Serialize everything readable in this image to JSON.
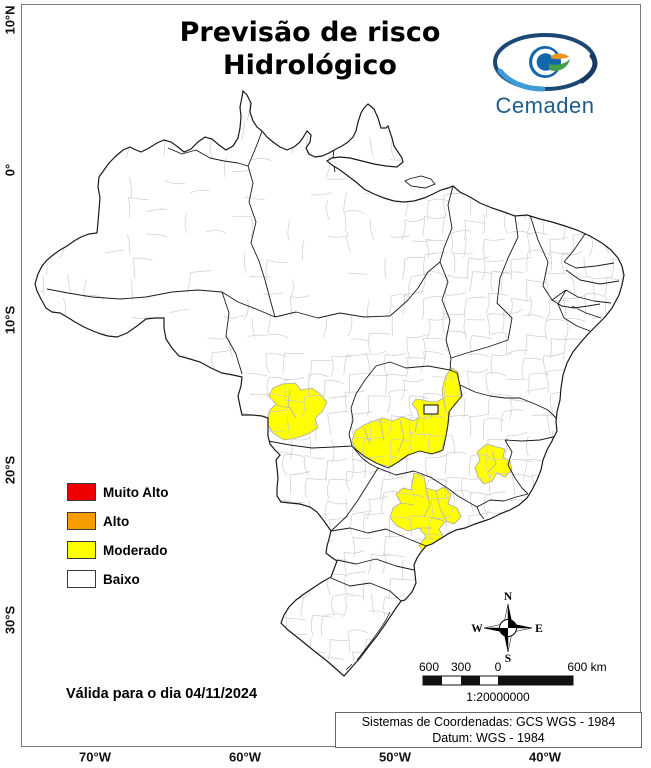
{
  "title": {
    "line1": "Previsão de risco",
    "line2": "Hidrológico"
  },
  "logo": {
    "name": "Cemaden"
  },
  "legend": {
    "items": [
      {
        "label": "Muito Alto",
        "color": "#ee0000"
      },
      {
        "label": "Alto",
        "color": "#f79b00"
      },
      {
        "label": "Moderado",
        "color": "#ffff00"
      },
      {
        "label": "Baixo",
        "color": "#ffffff"
      }
    ]
  },
  "validity": "Válida para o dia 04/11/2024",
  "compass": {
    "north": "N",
    "south": "S",
    "east": "E",
    "west": "W"
  },
  "scalebar": {
    "ticks": [
      "600",
      "300",
      "0",
      "600 km"
    ],
    "ratio": "1:20000000"
  },
  "coordinates": {
    "line1": "Sistemas de Coordenadas: GCS WGS - 1984",
    "line2": "Datum: WGS - 1984"
  },
  "axes": {
    "lat": [
      "10°N",
      "0°",
      "10°S",
      "20°S",
      "30°S"
    ],
    "lon": [
      "70°W",
      "60°W",
      "50°W",
      "40°W"
    ]
  },
  "map": {
    "risk_fill": "#ffff00"
  }
}
